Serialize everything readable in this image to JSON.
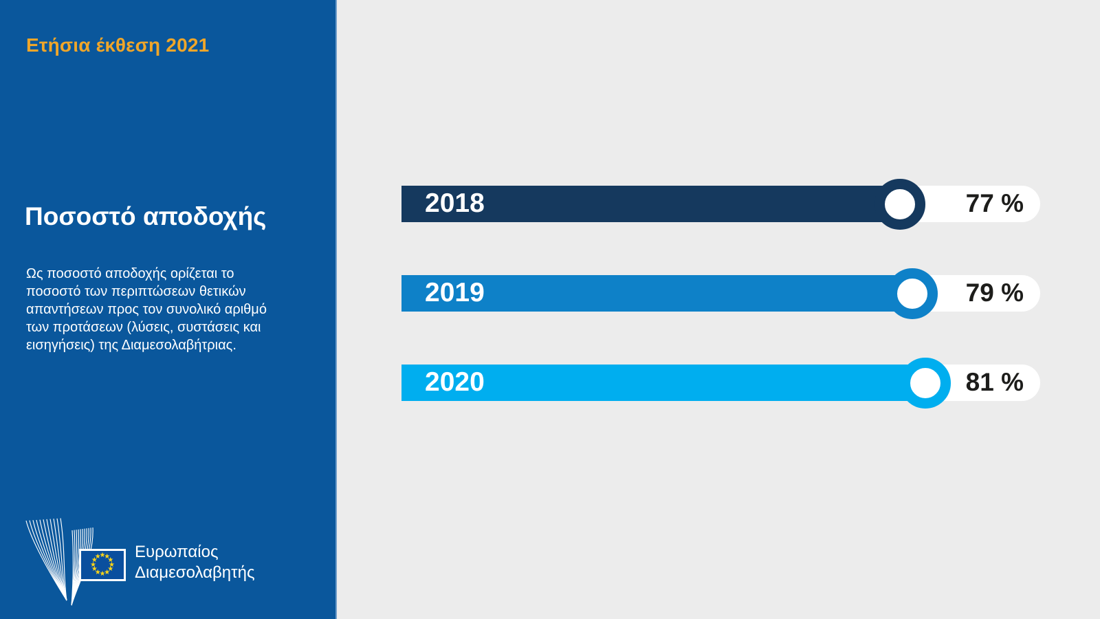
{
  "sidebar": {
    "report_label": "Ετήσια έκθεση 2021",
    "title": "Ποσοστό αποδοχής",
    "description_lines": [
      "Ως ποσοστό αποδοχής ορίζεται το",
      "ποσοστό των περιπτώσεων θετικών",
      "απαντήσεων προς τον συνολικό αριθμό",
      "των προτάσεων (λύσεις, συστάσεις και",
      "εισηγήσεις) της Διαμεσολαβήτριας."
    ],
    "logo": {
      "org_name_lines": [
        "Ευρωπαίος",
        "Διαμεσολαβητής"
      ],
      "flag_icon": "eu-flag-icon",
      "mark_icon": "ombudsman-bird-icon"
    }
  },
  "chart_data": {
    "type": "bar",
    "orientation": "horizontal",
    "title": "Ποσοστό αποδοχής",
    "categories": [
      "2018",
      "2019",
      "2020"
    ],
    "values": [
      77,
      79,
      81
    ],
    "value_labels": [
      "77 %",
      "79 %",
      "81 %"
    ],
    "unit": "%",
    "xlim": [
      0,
      100
    ],
    "grid": false,
    "legend": "none",
    "series_colors": [
      "#15395e",
      "#0e81c8",
      "#00aeef"
    ]
  },
  "colors": {
    "sidebar_background": "#0a579c",
    "chart_background": "#ececec",
    "track_white": "#ffffff",
    "accent_orange": "#f0a629",
    "value_text": "#1d1d1b",
    "eu_flag_blue": "#0a4f9e",
    "eu_star_yellow": "#ffd617"
  }
}
